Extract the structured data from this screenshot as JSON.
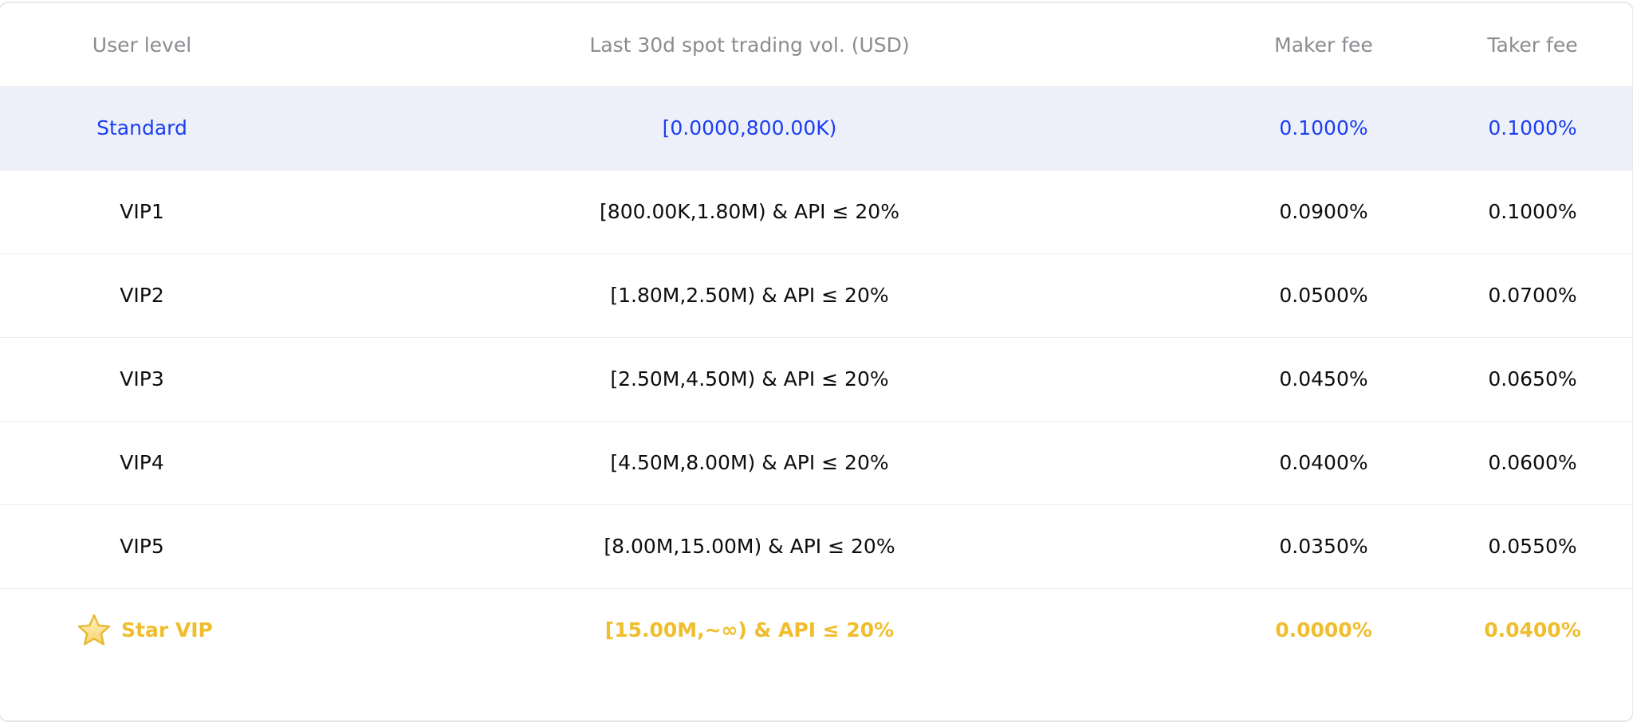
{
  "table": {
    "headers": {
      "level": "User level",
      "volume": "Last 30d spot trading vol. (USD)",
      "maker": "Maker fee",
      "taker": "Taker fee"
    },
    "rows": [
      {
        "level": "Standard",
        "volume": "[0.0000,800.00K)",
        "maker": "0.1000%",
        "taker": "0.1000%"
      },
      {
        "level": "VIP1",
        "volume": "[800.00K,1.80M) & API ≤ 20%",
        "maker": "0.0900%",
        "taker": "0.1000%"
      },
      {
        "level": "VIP2",
        "volume": "[1.80M,2.50M) & API ≤ 20%",
        "maker": "0.0500%",
        "taker": "0.0700%"
      },
      {
        "level": "VIP3",
        "volume": "[2.50M,4.50M) & API ≤ 20%",
        "maker": "0.0450%",
        "taker": "0.0650%"
      },
      {
        "level": "VIP4",
        "volume": "[4.50M,8.00M) & API ≤ 20%",
        "maker": "0.0400%",
        "taker": "0.0600%"
      },
      {
        "level": "VIP5",
        "volume": "[8.00M,15.00M) & API ≤ 20%",
        "maker": "0.0350%",
        "taker": "0.0550%"
      },
      {
        "level": "Star VIP",
        "volume": "[15.00M,~∞) & API ≤ 20%",
        "maker": "0.0000%",
        "taker": "0.0400%"
      }
    ]
  },
  "colors": {
    "highlight_text": "#1a3ef2",
    "highlight_row_bg": "#eef0f9",
    "star_vip_gold": "#f0bd2c",
    "header_text": "#8b8c90"
  },
  "icons": {
    "star_vip": "star-icon"
  }
}
